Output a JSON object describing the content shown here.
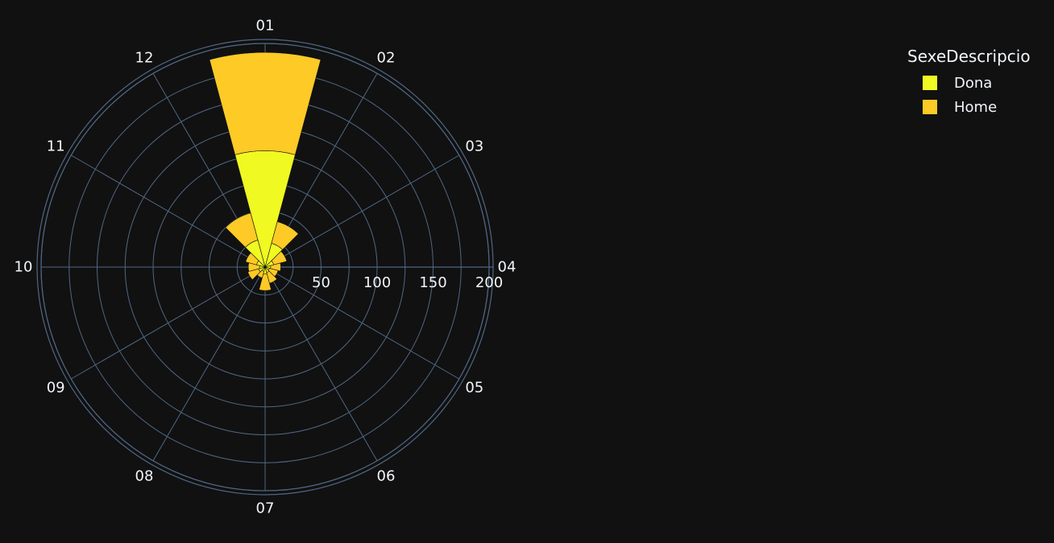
{
  "chart_data": {
    "type": "barpolar",
    "angular_categories": [
      "01",
      "02",
      "03",
      "04",
      "05",
      "06",
      "07",
      "08",
      "09",
      "10",
      "11",
      "12"
    ],
    "radial_tick_labels": [
      "50",
      "100",
      "150",
      "200"
    ],
    "radial_range": [
      0,
      200
    ],
    "legend_title": "SexeDescripcio",
    "series": [
      {
        "name": "Dona",
        "color": "#f0f921",
        "values": [
          104,
          22,
          8,
          5,
          4,
          5,
          6,
          4,
          6,
          5,
          8,
          25
        ]
      },
      {
        "name": "Home",
        "color": "#fdca26",
        "values": [
          88,
          20,
          12,
          9,
          8,
          10,
          15,
          6,
          10,
          10,
          10,
          25
        ]
      }
    ]
  },
  "colors": {
    "background": "#111111",
    "grid": "#506784",
    "text": "#f2f5fa",
    "bar_outline": "#111111"
  }
}
